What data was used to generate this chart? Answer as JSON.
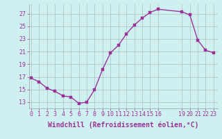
{
  "x": [
    0,
    1,
    2,
    3,
    4,
    5,
    6,
    7,
    8,
    9,
    10,
    11,
    12,
    13,
    14,
    15,
    16,
    19,
    20,
    21,
    22,
    23
  ],
  "y": [
    16.8,
    16.2,
    15.2,
    14.7,
    14.0,
    13.8,
    12.8,
    13.0,
    15.0,
    18.2,
    20.8,
    22.0,
    23.8,
    25.2,
    26.3,
    27.2,
    27.7,
    27.3,
    26.8,
    22.8,
    21.2,
    20.8
  ],
  "line_color": "#993399",
  "marker_color": "#993399",
  "bg_color": "#cff0f0",
  "grid_color": "#999999",
  "text_color": "#993399",
  "xlabel": "Windchill (Refroidissement éolien,°C)",
  "ylim": [
    12.0,
    28.5
  ],
  "yticks": [
    13,
    15,
    17,
    19,
    21,
    23,
    25,
    27
  ],
  "xticks": [
    0,
    1,
    2,
    3,
    4,
    5,
    6,
    7,
    8,
    9,
    10,
    11,
    12,
    13,
    14,
    15,
    16,
    19,
    20,
    21,
    22,
    23
  ],
  "xlim": [
    -0.3,
    23.5
  ],
  "xlabel_fontsize": 7.0,
  "tick_fontsize": 6.0,
  "marker_size": 2.5,
  "line_width": 1.0
}
